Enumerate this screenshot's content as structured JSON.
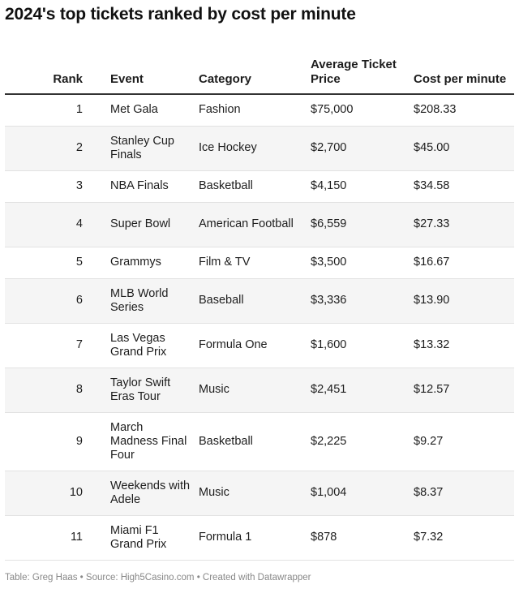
{
  "title": "2024's top tickets ranked by cost per minute",
  "footer": "Table: Greg Haas • Source: High5Casino.com • Created with Datawrapper",
  "chart_data": {
    "type": "table",
    "columns": [
      "Rank",
      "Event",
      "Category",
      "Average Ticket Price",
      "Cost per minute"
    ],
    "rows": [
      {
        "rank": "1",
        "event": "Met Gala",
        "category": "Fashion",
        "price": "$75,000",
        "cost": "$208.33"
      },
      {
        "rank": "2",
        "event": "Stanley Cup Finals",
        "category": "Ice Hockey",
        "price": "$2,700",
        "cost": "$45.00"
      },
      {
        "rank": "3",
        "event": "NBA Finals",
        "category": "Basketball",
        "price": "$4,150",
        "cost": "$34.58"
      },
      {
        "rank": "4",
        "event": "Super Bowl",
        "category": "American Football",
        "price": "$6,559",
        "cost": "$27.33"
      },
      {
        "rank": "5",
        "event": "Grammys",
        "category": "Film & TV",
        "price": "$3,500",
        "cost": "$16.67"
      },
      {
        "rank": "6",
        "event": "MLB World Series",
        "category": "Baseball",
        "price": "$3,336",
        "cost": "$13.90"
      },
      {
        "rank": "7",
        "event": "Las Vegas Grand Prix",
        "category": "Formula One",
        "price": "$1,600",
        "cost": "$13.32"
      },
      {
        "rank": "8",
        "event": "Taylor Swift Eras Tour",
        "category": "Music",
        "price": "$2,451",
        "cost": "$12.57"
      },
      {
        "rank": "9",
        "event": "March Madness Final Four",
        "category": "Basketball",
        "price": "$2,225",
        "cost": "$9.27"
      },
      {
        "rank": "10",
        "event": "Weekends with Adele",
        "category": "Music",
        "price": "$1,004",
        "cost": "$8.37"
      },
      {
        "rank": "11",
        "event": "Miami F1 Grand Prix",
        "category": "Formula 1",
        "price": "$878",
        "cost": "$7.32"
      }
    ]
  }
}
